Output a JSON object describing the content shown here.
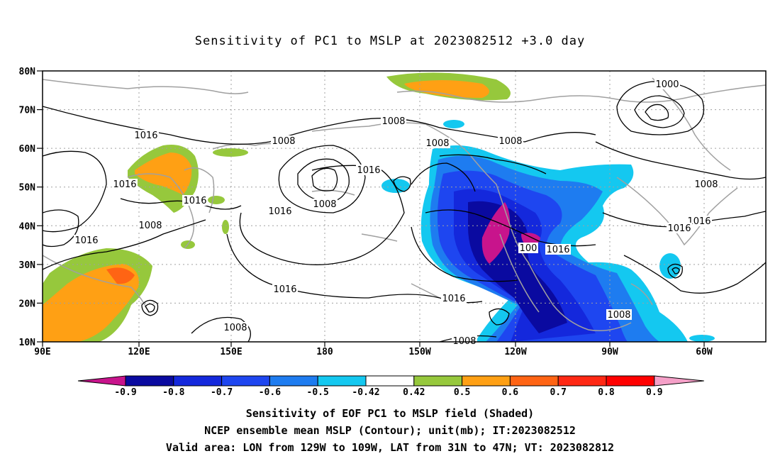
{
  "title": "Sensitivity of PC1 to MSLP at 2023082512 +3.0 day",
  "map": {
    "lat_labels": [
      "80N",
      "70N",
      "60N",
      "50N",
      "40N",
      "30N",
      "20N",
      "10N"
    ],
    "lon_labels": [
      "90E",
      "120E",
      "150E",
      "180",
      "150W",
      "120W",
      "90W",
      "60W"
    ],
    "contour_labels": [
      "1016",
      "1016",
      "1016",
      "1008",
      "1008",
      "1008",
      "1008",
      "1016",
      "1016",
      "1008",
      "1008",
      "1016",
      "1016",
      "1008",
      "1016",
      "1000",
      "1008",
      "1016",
      "1016",
      "1016",
      "100",
      "1008",
      "1008"
    ]
  },
  "colorbar": {
    "labels": [
      "-0.9",
      "-0.8",
      "-0.7",
      "-0.6",
      "-0.5",
      "-0.42",
      "0.42",
      "0.5",
      "0.6",
      "0.7",
      "0.8",
      "0.9"
    ],
    "colors": [
      "#c8148c",
      "#0a0aa0",
      "#1428dc",
      "#1e46f0",
      "#1e7cf0",
      "#14c8f0",
      "#ffffff",
      "#96c83c",
      "#ffa014",
      "#ff6414",
      "#ff2814",
      "#ff0000",
      "#f5a0c8"
    ]
  },
  "captions": [
    "Sensitivity of EOF PC1 to MSLP field (Shaded)",
    "NCEP ensemble mean MSLP (Contour); unit(mb); IT:2023082512",
    "Valid area: LON from 129W to 109W, LAT from 31N to 47N; VT: 2023082812"
  ]
}
